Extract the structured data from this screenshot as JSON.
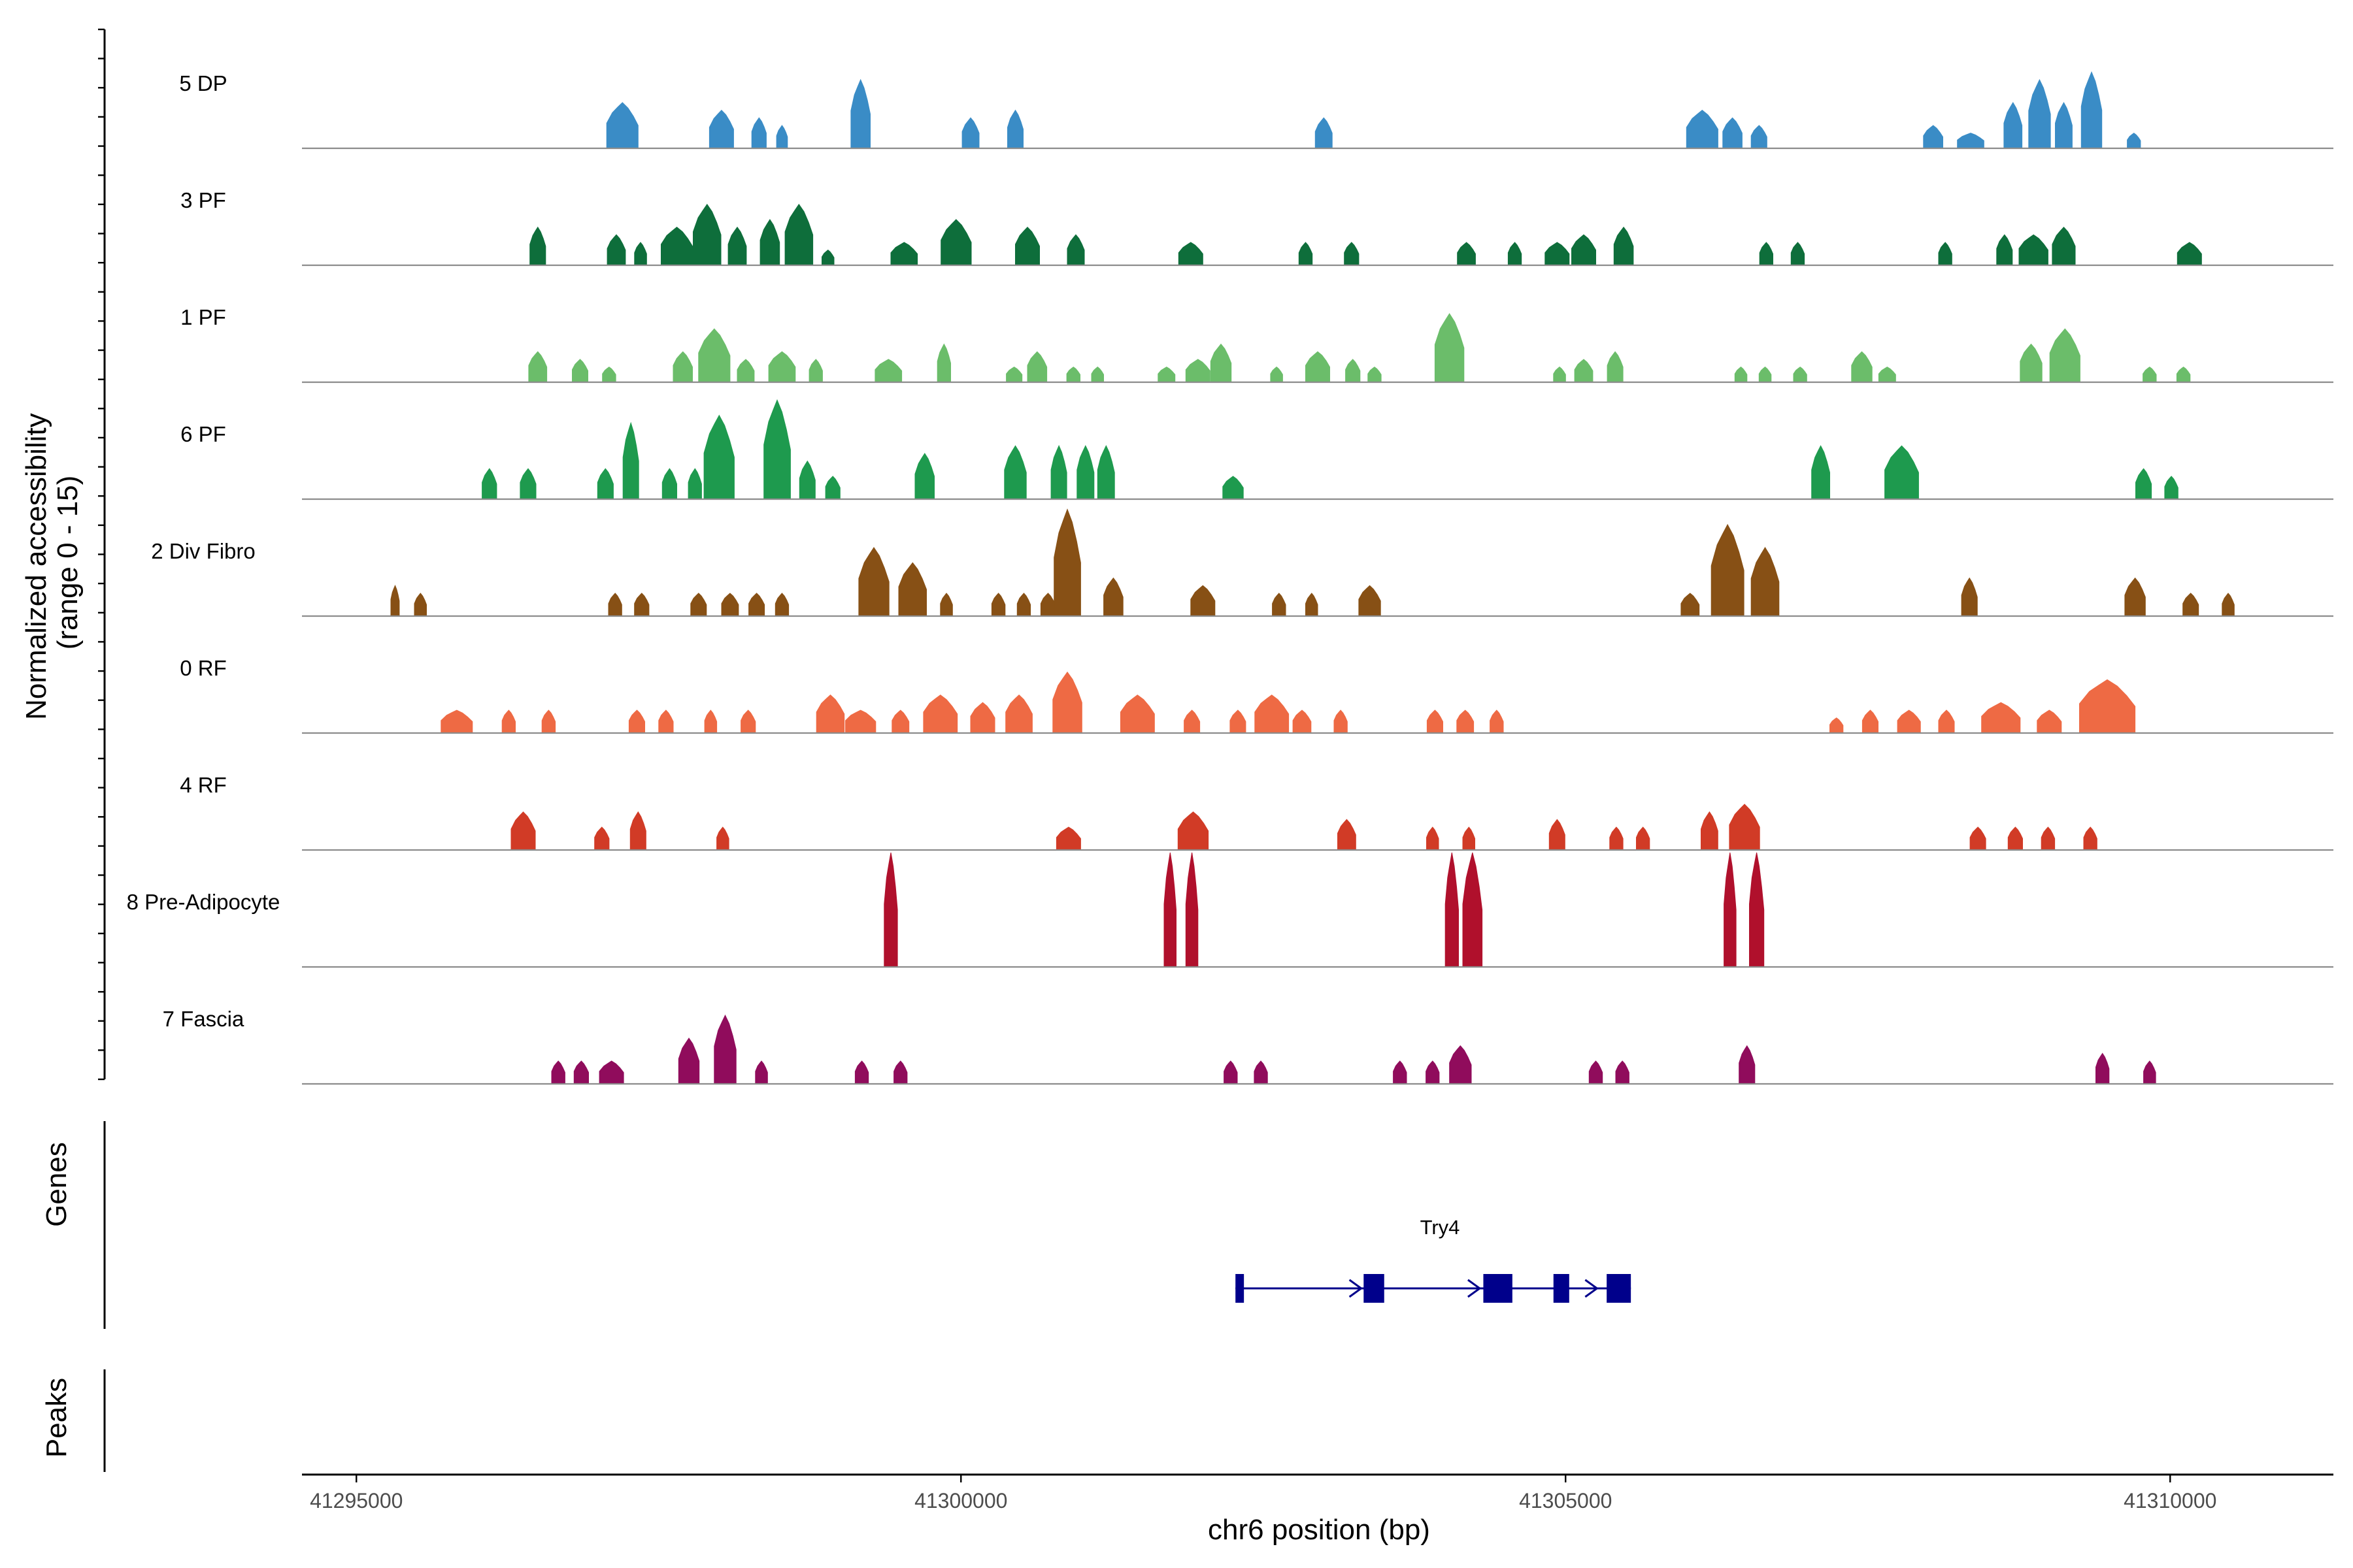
{
  "chart_data": {
    "type": "coverage-track",
    "ylabel_line1": "Normalized accessibility",
    "ylabel_line2": "(range 0 - 15)",
    "yrange": [
      0,
      15
    ],
    "xlabel": "chr6 position (bp)",
    "xlim": [
      41294550,
      41311350
    ],
    "xticks": [
      41295000,
      41300000,
      41305000,
      41310000
    ],
    "xtick_labels": [
      "41295000",
      "41300000",
      "41305000",
      "41310000"
    ],
    "tracks": [
      {
        "name": "5 DP",
        "color": "#3a8cc6",
        "peaks": [
          [
            41297200,
            260,
            6
          ],
          [
            41298020,
            200,
            5
          ],
          [
            41298330,
            120,
            4
          ],
          [
            41298520,
            90,
            3
          ],
          [
            41299170,
            160,
            9
          ],
          [
            41300080,
            140,
            4
          ],
          [
            41300450,
            130,
            5
          ],
          [
            41303000,
            140,
            4
          ],
          [
            41306130,
            260,
            5
          ],
          [
            41306380,
            160,
            4
          ],
          [
            41306600,
            130,
            3
          ],
          [
            41308040,
            160,
            3
          ],
          [
            41308350,
            220,
            2
          ],
          [
            41308700,
            150,
            6
          ],
          [
            41308920,
            180,
            9
          ],
          [
            41309120,
            140,
            6
          ],
          [
            41309350,
            170,
            10
          ],
          [
            41309700,
            110,
            2
          ]
        ]
      },
      {
        "name": "3 PF",
        "color": "#0e6e3b",
        "peaks": [
          [
            41296500,
            130,
            5
          ],
          [
            41297150,
            150,
            4
          ],
          [
            41297350,
            100,
            3
          ],
          [
            41297650,
            260,
            5
          ],
          [
            41297900,
            230,
            8
          ],
          [
            41298150,
            150,
            5
          ],
          [
            41298420,
            160,
            6
          ],
          [
            41298660,
            230,
            8
          ],
          [
            41298900,
            100,
            2
          ],
          [
            41299530,
            220,
            3
          ],
          [
            41299960,
            250,
            6
          ],
          [
            41300550,
            200,
            5
          ],
          [
            41300950,
            140,
            4
          ],
          [
            41301900,
            200,
            3
          ],
          [
            41302850,
            110,
            3
          ],
          [
            41303230,
            120,
            3
          ],
          [
            41304180,
            150,
            3
          ],
          [
            41304580,
            110,
            3
          ],
          [
            41304930,
            200,
            3
          ],
          [
            41305150,
            200,
            4
          ],
          [
            41305480,
            160,
            5
          ],
          [
            41306660,
            110,
            3
          ],
          [
            41306920,
            110,
            3
          ],
          [
            41308140,
            110,
            3
          ],
          [
            41308630,
            130,
            4
          ],
          [
            41308870,
            240,
            4
          ],
          [
            41309120,
            190,
            5
          ],
          [
            41310160,
            200,
            3
          ]
        ]
      },
      {
        "name": "1 PF",
        "color": "#6bbd6a",
        "peaks": [
          [
            41296500,
            150,
            4
          ],
          [
            41296850,
            130,
            3
          ],
          [
            41297090,
            110,
            2
          ],
          [
            41297700,
            160,
            4
          ],
          [
            41297960,
            260,
            7
          ],
          [
            41298220,
            140,
            3
          ],
          [
            41298520,
            220,
            4
          ],
          [
            41298800,
            110,
            3
          ],
          [
            41299400,
            220,
            3
          ],
          [
            41299860,
            110,
            5
          ],
          [
            41300440,
            130,
            2
          ],
          [
            41300630,
            160,
            4
          ],
          [
            41300930,
            110,
            2
          ],
          [
            41301130,
            100,
            2
          ],
          [
            41301700,
            140,
            2
          ],
          [
            41301960,
            200,
            3
          ],
          [
            41302150,
            170,
            5
          ],
          [
            41302610,
            100,
            2
          ],
          [
            41302950,
            200,
            4
          ],
          [
            41303240,
            120,
            3
          ],
          [
            41303420,
            110,
            2
          ],
          [
            41304040,
            240,
            9
          ],
          [
            41304950,
            100,
            2
          ],
          [
            41305150,
            150,
            3
          ],
          [
            41305410,
            130,
            4
          ],
          [
            41306450,
            100,
            2
          ],
          [
            41306650,
            100,
            2
          ],
          [
            41306940,
            110,
            2
          ],
          [
            41307450,
            170,
            4
          ],
          [
            41307660,
            140,
            2
          ],
          [
            41308850,
            180,
            5
          ],
          [
            41309130,
            250,
            7
          ],
          [
            41309830,
            110,
            2
          ],
          [
            41310110,
            110,
            2
          ]
        ]
      },
      {
        "name": "6 PF",
        "color": "#1e9a4e",
        "peaks": [
          [
            41296100,
            120,
            4
          ],
          [
            41296420,
            130,
            4
          ],
          [
            41297060,
            130,
            4
          ],
          [
            41297270,
            130,
            10
          ],
          [
            41297590,
            120,
            4
          ],
          [
            41297800,
            110,
            4
          ],
          [
            41298000,
            250,
            11
          ],
          [
            41298480,
            220,
            13
          ],
          [
            41298730,
            130,
            5
          ],
          [
            41298940,
            120,
            3
          ],
          [
            41299700,
            160,
            6
          ],
          [
            41300450,
            180,
            7
          ],
          [
            41300810,
            130,
            7
          ],
          [
            41301030,
            140,
            7
          ],
          [
            41301200,
            140,
            7
          ],
          [
            41302250,
            170,
            3
          ],
          [
            41307110,
            150,
            7
          ],
          [
            41307780,
            280,
            7
          ],
          [
            41309780,
            130,
            4
          ],
          [
            41310010,
            110,
            3
          ]
        ]
      },
      {
        "name": "2 Div Fibro",
        "color": "#875015",
        "peaks": [
          [
            41295320,
            70,
            4
          ],
          [
            41295530,
            100,
            3
          ],
          [
            41297140,
            110,
            3
          ],
          [
            41297360,
            120,
            3
          ],
          [
            41297830,
            130,
            3
          ],
          [
            41298090,
            140,
            3
          ],
          [
            41298310,
            130,
            3
          ],
          [
            41298520,
            110,
            3
          ],
          [
            41299280,
            250,
            9
          ],
          [
            41299600,
            230,
            7
          ],
          [
            41299880,
            100,
            3
          ],
          [
            41300310,
            110,
            3
          ],
          [
            41300520,
            110,
            3
          ],
          [
            41300720,
            120,
            3
          ],
          [
            41300880,
            220,
            14
          ],
          [
            41301260,
            160,
            5
          ],
          [
            41302000,
            200,
            4
          ],
          [
            41302630,
            110,
            3
          ],
          [
            41302900,
            100,
            3
          ],
          [
            41303380,
            180,
            4
          ],
          [
            41306030,
            150,
            3
          ],
          [
            41306340,
            270,
            12
          ],
          [
            41306650,
            230,
            9
          ],
          [
            41308340,
            130,
            5
          ],
          [
            41309710,
            170,
            5
          ],
          [
            41310170,
            130,
            3
          ],
          [
            41310480,
            100,
            3
          ]
        ]
      },
      {
        "name": "0 RF",
        "color": "#ee6a44",
        "peaks": [
          [
            41295830,
            260,
            3
          ],
          [
            41296260,
            110,
            3
          ],
          [
            41296590,
            110,
            3
          ],
          [
            41297320,
            130,
            3
          ],
          [
            41297560,
            120,
            3
          ],
          [
            41297930,
            100,
            3
          ],
          [
            41298240,
            120,
            3
          ],
          [
            41298920,
            230,
            5
          ],
          [
            41299170,
            250,
            3
          ],
          [
            41299500,
            140,
            3
          ],
          [
            41299830,
            280,
            5
          ],
          [
            41300180,
            200,
            4
          ],
          [
            41300480,
            220,
            5
          ],
          [
            41300880,
            240,
            8
          ],
          [
            41301460,
            280,
            5
          ],
          [
            41301910,
            130,
            3
          ],
          [
            41302290,
            130,
            3
          ],
          [
            41302570,
            280,
            5
          ],
          [
            41302820,
            150,
            3
          ],
          [
            41303140,
            110,
            3
          ],
          [
            41303920,
            130,
            3
          ],
          [
            41304170,
            140,
            3
          ],
          [
            41304430,
            110,
            3
          ],
          [
            41307240,
            110,
            2
          ],
          [
            41307520,
            130,
            3
          ],
          [
            41307840,
            190,
            3
          ],
          [
            41308150,
            130,
            3
          ],
          [
            41308600,
            320,
            4
          ],
          [
            41309000,
            200,
            3
          ],
          [
            41309480,
            460,
            7
          ]
        ]
      },
      {
        "name": "4 RF",
        "color": "#d13b26",
        "peaks": [
          [
            41296380,
            200,
            5
          ],
          [
            41297030,
            120,
            3
          ],
          [
            41297330,
            130,
            5
          ],
          [
            41298030,
            100,
            3
          ],
          [
            41300890,
            200,
            3
          ],
          [
            41301920,
            250,
            5
          ],
          [
            41303190,
            150,
            4
          ],
          [
            41303900,
            100,
            3
          ],
          [
            41304200,
            100,
            3
          ],
          [
            41304930,
            130,
            4
          ],
          [
            41305420,
            110,
            3
          ],
          [
            41305640,
            110,
            3
          ],
          [
            41306190,
            140,
            5
          ],
          [
            41306480,
            250,
            6
          ],
          [
            41308410,
            130,
            3
          ],
          [
            41308720,
            120,
            3
          ],
          [
            41308990,
            110,
            3
          ],
          [
            41309340,
            110,
            3
          ]
        ]
      },
      {
        "name": "8 Pre-Adipocyte",
        "color": "#b0102c",
        "peaks": [
          [
            41299420,
            110,
            44
          ],
          [
            41301730,
            100,
            22
          ],
          [
            41301910,
            100,
            22
          ],
          [
            41304060,
            110,
            22
          ],
          [
            41304230,
            160,
            22
          ],
          [
            41306360,
            100,
            22
          ],
          [
            41306580,
            120,
            22
          ]
        ]
      },
      {
        "name": "7 Fascia",
        "color": "#900c5c",
        "peaks": [
          [
            41296670,
            110,
            3
          ],
          [
            41296860,
            120,
            3
          ],
          [
            41297110,
            200,
            3
          ],
          [
            41297750,
            170,
            6
          ],
          [
            41298050,
            180,
            9
          ],
          [
            41298350,
            100,
            3
          ],
          [
            41299180,
            110,
            3
          ],
          [
            41299500,
            110,
            3
          ],
          [
            41302230,
            110,
            3
          ],
          [
            41302480,
            110,
            3
          ],
          [
            41303630,
            110,
            3
          ],
          [
            41303900,
            110,
            3
          ],
          [
            41304130,
            180,
            5
          ],
          [
            41305250,
            110,
            3
          ],
          [
            41305470,
            110,
            3
          ],
          [
            41306500,
            130,
            5
          ],
          [
            41309440,
            110,
            4
          ],
          [
            41309830,
            100,
            3
          ]
        ]
      }
    ],
    "genes_label": "Genes",
    "peaks_label": "Peaks",
    "gene": {
      "name": "Try4",
      "color": "#00008b",
      "start": 41302270,
      "end": 41305540,
      "exons": [
        [
          41302270,
          41302340
        ],
        [
          41303330,
          41303500
        ],
        [
          41304320,
          41304560
        ],
        [
          41304900,
          41305030
        ],
        [
          41305340,
          41305540
        ]
      ],
      "arrows": [
        41303310,
        41304290,
        41305260
      ]
    }
  }
}
